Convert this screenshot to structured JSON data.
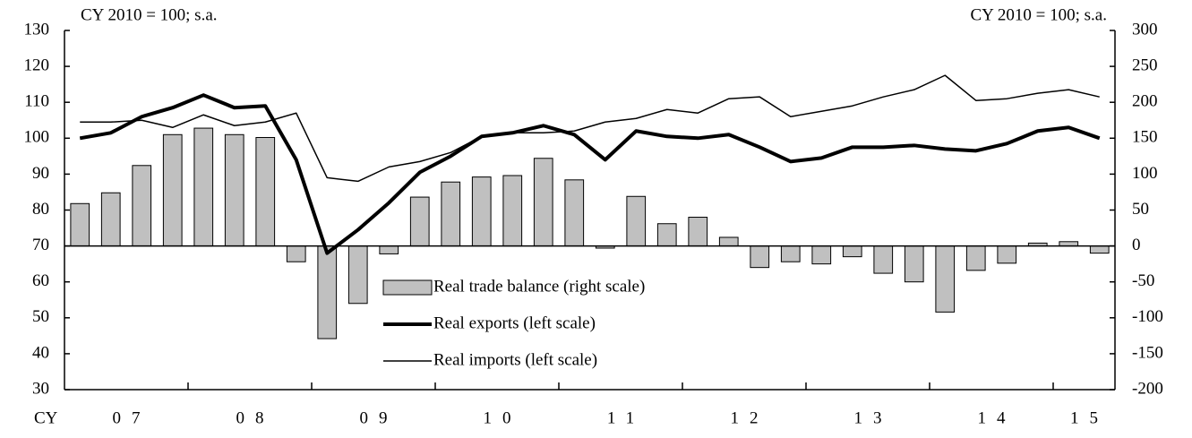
{
  "chart_data": {
    "type": "bar_line",
    "left_axis_label": "CY 2010 = 100; s.a.",
    "right_axis_label": "CY 2010 = 100; s.a.",
    "x_prefix": "CY",
    "year_labels": [
      "07",
      "08",
      "09",
      "10",
      "11",
      "12",
      "13",
      "14",
      "15"
    ],
    "quarters_per_year": 4,
    "ylim": [
      30,
      130
    ],
    "yticks": [
      30,
      40,
      50,
      60,
      70,
      80,
      90,
      100,
      110,
      120,
      130
    ],
    "y2lim": [
      -200,
      300
    ],
    "y2ticks": [
      -200,
      -150,
      -100,
      -50,
      0,
      50,
      100,
      150,
      200,
      250,
      300
    ],
    "series": [
      {
        "name": "Real trade balance (right scale)",
        "kind": "bar",
        "axis": "y2",
        "color": "#c0c0c0",
        "values": [
          59,
          74,
          112,
          155,
          164,
          155,
          151,
          -22,
          -129,
          -80,
          -11,
          68,
          89,
          96,
          98,
          122,
          92,
          -3,
          69,
          31,
          40,
          12,
          -30,
          -22,
          -25,
          -15,
          -38,
          -50,
          -92,
          -34,
          -24,
          4,
          6,
          -10
        ]
      },
      {
        "name": "Real exports (left scale)",
        "kind": "line",
        "axis": "y",
        "color": "#000000",
        "width": 4,
        "values": [
          100,
          101.5,
          106,
          108.5,
          112,
          108.5,
          109,
          94,
          68,
          74.5,
          82,
          90.5,
          95,
          100.5,
          101.5,
          103.5,
          101,
          94,
          102,
          100.5,
          100,
          101,
          97.5,
          93.5,
          94.5,
          97.5,
          97.5,
          98,
          97,
          96.5,
          98.5,
          102,
          103,
          100
        ]
      },
      {
        "name": "Real imports (left scale)",
        "kind": "line",
        "axis": "y",
        "color": "#000000",
        "width": 1.5,
        "values": [
          104.5,
          104.5,
          105,
          103,
          106.5,
          103.5,
          104.5,
          107,
          89,
          88,
          92,
          93.5,
          96,
          100.5,
          101.5,
          101.5,
          102,
          104.5,
          105.5,
          108,
          107,
          111,
          111.5,
          106,
          107.5,
          109,
          111.5,
          113.5,
          117.5,
          110.5,
          111,
          112.5,
          113.5,
          111.5
        ]
      }
    ]
  }
}
